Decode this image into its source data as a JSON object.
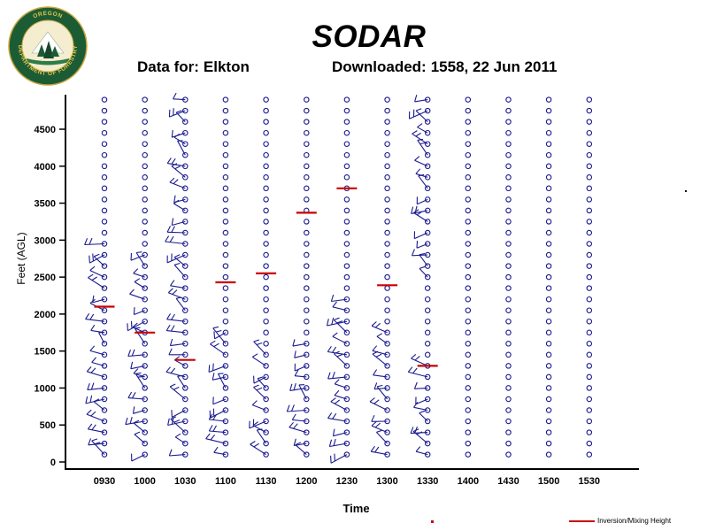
{
  "header": {
    "title": "SODAR",
    "data_for_label": "Data for:",
    "station": "Elkton",
    "downloaded_label": "Downloaded:",
    "downloaded_value": "1558, 22 Jun 2011"
  },
  "logo": {
    "top_text": "OREGON",
    "bottom_text": "DEPARTMENT OF FORESTRY"
  },
  "misc": {
    "stray_dot": "."
  },
  "chart_data": {
    "type": "scatter",
    "subtype": "sodar-wind-barb-time-height-profile",
    "title": "SODAR",
    "xlabel": "Time",
    "ylabel": "Feet (AGL)",
    "x_ticks": [
      "0930",
      "1000",
      "1030",
      "1100",
      "1130",
      "1200",
      "1230",
      "1300",
      "1330",
      "1400",
      "1430",
      "1500",
      "1530"
    ],
    "y_ticks": [
      0,
      500,
      1000,
      1500,
      2000,
      2500,
      3000,
      3500,
      4000,
      4500
    ],
    "ylim": [
      0,
      4900
    ],
    "grid": "off",
    "legend_position": "bottom-right",
    "legend_label": "Inversion/Mixing Height",
    "levels": {
      "start": 100,
      "step": 150,
      "count": 33
    },
    "point_color": "#1a1a8f",
    "axis_color": "#000000",
    "inversion_color": "#cc0000",
    "inversion_mixing_height_ft": {
      "0930": 2100,
      "1000": 1750,
      "1030": 1380,
      "1100": 2430,
      "1130": 2550,
      "1200": 3370,
      "1230": 3700,
      "1300": 2390,
      "1330": 1300
    },
    "wind_barb_height_ranges_ft": {
      "0930": [
        [
          100,
          3050
        ]
      ],
      "1000": [
        [
          100,
          2900
        ]
      ],
      "1030": [
        [
          100,
          4900
        ]
      ],
      "1100": [
        [
          100,
          1800
        ]
      ],
      "1130": [
        [
          100,
          1500
        ]
      ],
      "1200": [
        [
          100,
          1600
        ]
      ],
      "1230": [
        [
          100,
          2250
        ]
      ],
      "1300": [
        [
          100,
          1750
        ]
      ],
      "1330": [
        [
          100,
          1300
        ],
        [
          2400,
          4900
        ]
      ],
      "1400": [],
      "1430": [],
      "1500": [],
      "1530": []
    }
  }
}
